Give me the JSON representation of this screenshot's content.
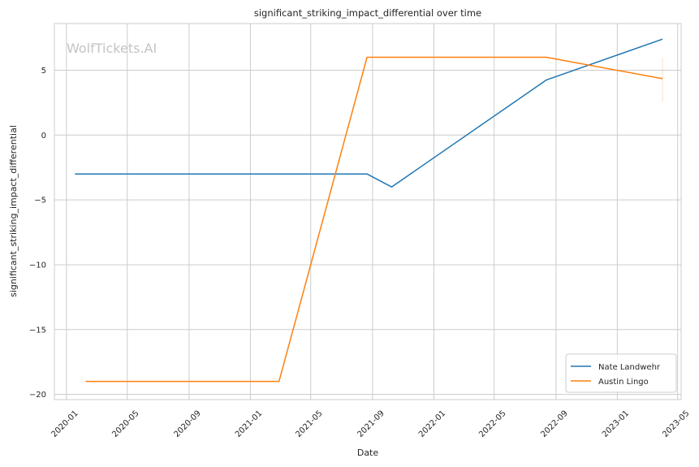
{
  "chart_data": {
    "type": "line",
    "title": "significant_striking_impact_differential over time",
    "xlabel": "Date",
    "ylabel": "significant_striking_impact_differential",
    "watermark": "WolfTickets.AI",
    "x_ticks": [
      "2020-01",
      "2020-05",
      "2020-09",
      "2021-01",
      "2021-05",
      "2021-09",
      "2022-01",
      "2022-05",
      "2022-09",
      "2023-01",
      "2023-05"
    ],
    "y_ticks": [
      -20,
      -15,
      -10,
      -5,
      0,
      5
    ],
    "y_tick_labels": [
      "−20",
      "−15",
      "−10",
      "−5",
      "0",
      "5"
    ],
    "xlim": [
      "2019-12-08",
      "2023-05-08"
    ],
    "ylim": [
      -20.4,
      8.6
    ],
    "grid": true,
    "legend_position": "lower-right",
    "series": [
      {
        "name": "Nate Landwehr",
        "color": "#1f77b4",
        "x": [
          "2020-01-18",
          "2021-08-21",
          "2021-10-09",
          "2022-08-13",
          "2023-04-01"
        ],
        "y": [
          -3,
          -3,
          -4,
          4.25,
          7.4
        ]
      },
      {
        "name": "Austin Lingo",
        "color": "#ff7f0e",
        "x": [
          "2020-02-08",
          "2021-02-27",
          "2021-08-21",
          "2022-08-13",
          "2023-04-01"
        ],
        "y": [
          -19,
          -19,
          6,
          6,
          4.35
        ],
        "error_bar": {
          "x": "2023-04-01",
          "low": 2.6,
          "high": 6.0
        }
      }
    ]
  }
}
